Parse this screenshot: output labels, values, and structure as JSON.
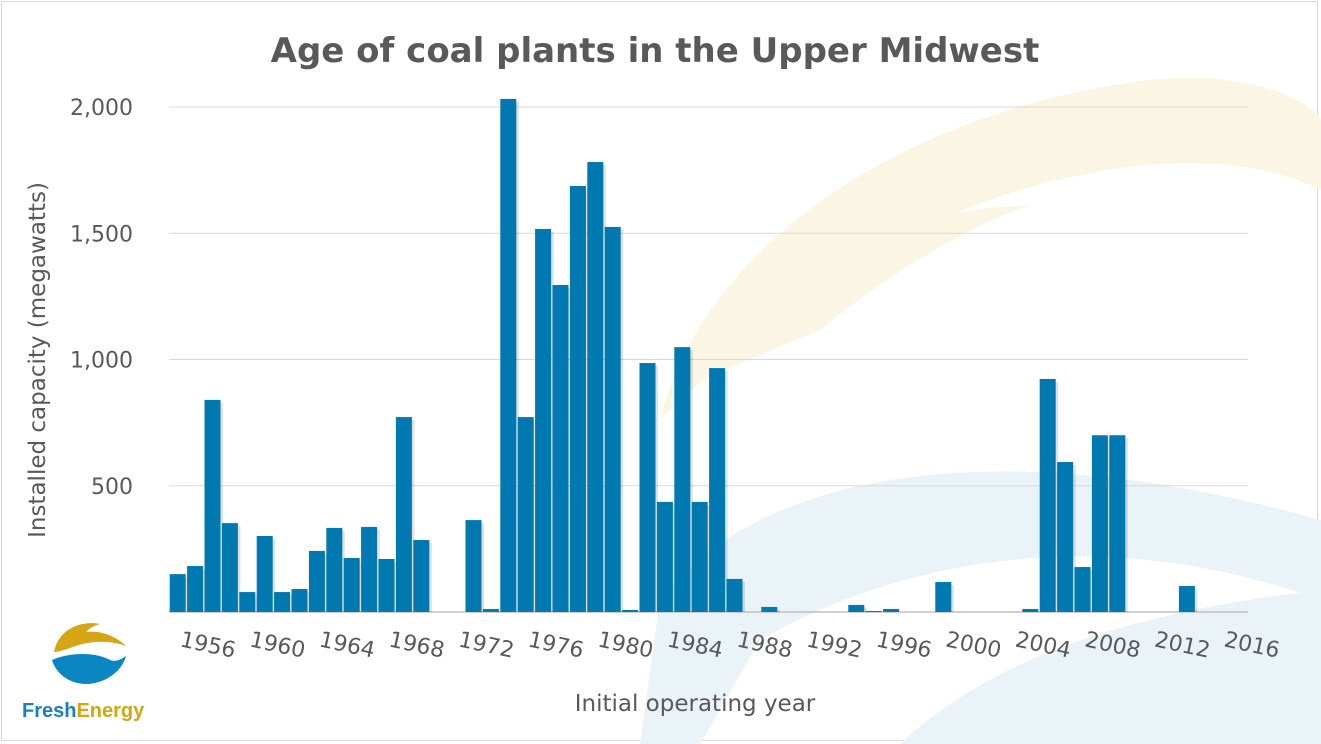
{
  "chart_data": {
    "type": "bar",
    "title": "Age of coal plants in the Upper Midwest",
    "xlabel": "Initial operating year",
    "ylabel": "Installed capacity (megawatts)",
    "ylim": [
      0,
      2000
    ],
    "yticks": [
      0,
      500,
      1000,
      1500,
      2000
    ],
    "ytick_labels": [
      "",
      "500",
      "1,000",
      "1,500",
      "2,000"
    ],
    "xtick_labels": [
      "1956",
      "1960",
      "1964",
      "1968",
      "1972",
      "1976",
      "1980",
      "1984",
      "1988",
      "1992",
      "1996",
      "2000",
      "2004",
      "2008",
      "2012",
      "2016"
    ],
    "grid": true,
    "bar_color": "#0079b0",
    "categories": [
      1954,
      1955,
      1956,
      1957,
      1958,
      1959,
      1960,
      1961,
      1962,
      1963,
      1964,
      1965,
      1966,
      1967,
      1968,
      1969,
      1970,
      1971,
      1972,
      1973,
      1974,
      1975,
      1976,
      1977,
      1978,
      1979,
      1980,
      1981,
      1982,
      1983,
      1984,
      1985,
      1986,
      1987,
      1988,
      1989,
      1990,
      1991,
      1992,
      1993,
      1994,
      1995,
      1996,
      1997,
      1998,
      1999,
      2000,
      2001,
      2002,
      2003,
      2004,
      2005,
      2006,
      2007,
      2008,
      2009,
      2010,
      2011,
      2012,
      2013,
      2014,
      2015,
      2016
    ],
    "values": [
      150,
      182,
      840,
      352,
      79,
      301,
      79,
      91,
      242,
      333,
      214,
      337,
      210,
      772,
      285,
      0,
      0,
      364,
      12,
      2032,
      772,
      1517,
      1295,
      1687,
      1782,
      1525,
      8,
      986,
      436,
      1049,
      436,
      966,
      131,
      0,
      20,
      0,
      0,
      0,
      0,
      28,
      4,
      12,
      0,
      0,
      119,
      0,
      0,
      0,
      0,
      12,
      923,
      594,
      178,
      700,
      700,
      0,
      0,
      0,
      103,
      0,
      0,
      0,
      0
    ]
  },
  "logo": {
    "word1": "Fresh",
    "word2": "Energy",
    "color1": "#1a7fbf",
    "color2": "#d4a514"
  }
}
